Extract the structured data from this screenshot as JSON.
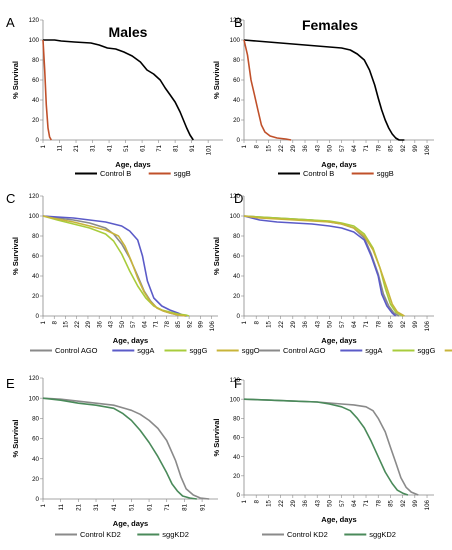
{
  "chart_data": [
    {
      "type": "line",
      "panel": "A",
      "title": "Males",
      "xlabel": "Age, days",
      "ylabel": "% Survival",
      "ylim": [
        0,
        120
      ],
      "yticks": [
        "0",
        "20",
        "40",
        "60",
        "80",
        "100",
        "120"
      ],
      "xticks": [
        "1",
        "11",
        "21",
        "31",
        "41",
        "51",
        "61",
        "71",
        "81",
        "91",
        "101"
      ],
      "xlim": [
        1,
        110
      ],
      "legend": "bottom",
      "series": [
        {
          "name": "Control B",
          "color": "#000000",
          "x": [
            1,
            8,
            12,
            20,
            30,
            35,
            40,
            45,
            50,
            55,
            60,
            64,
            68,
            72,
            75,
            78,
            81,
            84,
            86,
            88,
            90,
            92
          ],
          "y": [
            100,
            100,
            99,
            98,
            97,
            95,
            92,
            91,
            88,
            84,
            78,
            70,
            66,
            60,
            52,
            45,
            38,
            28,
            20,
            12,
            5,
            0
          ]
        },
        {
          "name": "sggB",
          "color": "#c0502a",
          "x": [
            1,
            2,
            3,
            4,
            5,
            6
          ],
          "y": [
            100,
            70,
            35,
            12,
            3,
            0
          ]
        }
      ]
    },
    {
      "type": "line",
      "panel": "B",
      "title": "Females",
      "xlabel": "Age, days",
      "ylabel": "% Survival",
      "ylim": [
        0,
        120
      ],
      "yticks": [
        "0",
        "20",
        "40",
        "60",
        "80",
        "100",
        "120"
      ],
      "xticks": [
        "1",
        "8",
        "15",
        "22",
        "29",
        "36",
        "43",
        "50",
        "57",
        "64",
        "71",
        "78",
        "85",
        "92",
        "99",
        "106"
      ],
      "xlim": [
        1,
        110
      ],
      "legend": "bottom",
      "series": [
        {
          "name": "Control B",
          "color": "#000000",
          "x": [
            1,
            8,
            15,
            22,
            29,
            36,
            43,
            50,
            57,
            62,
            66,
            70,
            73,
            76,
            78,
            80,
            82,
            84,
            86,
            88,
            90,
            93
          ],
          "y": [
            100,
            99,
            98,
            97,
            96,
            95,
            94,
            93,
            92,
            90,
            86,
            80,
            70,
            55,
            42,
            30,
            20,
            12,
            6,
            2,
            0,
            0
          ]
        },
        {
          "name": "sggB",
          "color": "#c0502a",
          "x": [
            1,
            3,
            5,
            7,
            9,
            11,
            13,
            16,
            20,
            25,
            28
          ],
          "y": [
            100,
            85,
            60,
            45,
            30,
            15,
            8,
            4,
            2,
            1,
            0
          ]
        }
      ]
    },
    {
      "type": "line",
      "panel": "C",
      "title": "",
      "xlabel": "Age, days",
      "ylabel": "% Survival",
      "ylim": [
        0,
        120
      ],
      "yticks": [
        "0",
        "20",
        "40",
        "60",
        "80",
        "100",
        "120"
      ],
      "xticks": [
        "1",
        "8",
        "15",
        "22",
        "29",
        "36",
        "43",
        "50",
        "57",
        "64",
        "71",
        "78",
        "85",
        "92",
        "99",
        "106"
      ],
      "xlim": [
        1,
        110
      ],
      "legend": "bottom",
      "series": [
        {
          "name": "Control AGO",
          "color": "#8a8a8a",
          "x": [
            1,
            10,
            20,
            30,
            40,
            45,
            50,
            55,
            60,
            64,
            68,
            72,
            76,
            80,
            85,
            90
          ],
          "y": [
            100,
            98,
            96,
            93,
            88,
            82,
            72,
            58,
            40,
            25,
            15,
            8,
            5,
            3,
            1,
            0
          ]
        },
        {
          "name": "sggA",
          "color": "#5b5bc8",
          "x": [
            1,
            10,
            20,
            30,
            40,
            50,
            55,
            60,
            63,
            66,
            70,
            75,
            80,
            85,
            88,
            91
          ],
          "y": [
            100,
            99,
            98,
            96,
            94,
            90,
            85,
            76,
            60,
            35,
            18,
            10,
            6,
            3,
            1,
            0
          ]
        },
        {
          "name": "sggG",
          "color": "#a8cc3c",
          "x": [
            1,
            10,
            20,
            30,
            40,
            45,
            50,
            55,
            60,
            65,
            70,
            75,
            80,
            85,
            90,
            92
          ],
          "y": [
            100,
            96,
            92,
            88,
            82,
            75,
            62,
            45,
            30,
            18,
            10,
            6,
            4,
            2,
            1,
            0
          ]
        },
        {
          "name": "sggO",
          "color": "#c8b43a",
          "x": [
            1,
            10,
            20,
            30,
            40,
            48,
            52,
            56,
            60,
            64,
            68,
            72,
            76,
            80,
            85,
            90
          ],
          "y": [
            100,
            97,
            94,
            90,
            86,
            80,
            70,
            55,
            38,
            24,
            14,
            8,
            5,
            3,
            1,
            0
          ]
        }
      ]
    },
    {
      "type": "line",
      "panel": "D",
      "title": "",
      "xlabel": "Age, days",
      "ylabel": "% Survival",
      "ylim": [
        0,
        120
      ],
      "yticks": [
        "0",
        "20",
        "40",
        "60",
        "80",
        "100",
        "120"
      ],
      "xticks": [
        "1",
        "8",
        "15",
        "22",
        "29",
        "36",
        "43",
        "50",
        "57",
        "64",
        "71",
        "78",
        "85",
        "92",
        "99",
        "106"
      ],
      "xlim": [
        1,
        110
      ],
      "legend": "bottom",
      "series": [
        {
          "name": "Control AGO",
          "color": "#8a8a8a",
          "x": [
            1,
            10,
            20,
            30,
            40,
            50,
            57,
            64,
            70,
            74,
            78,
            81,
            84,
            87,
            90
          ],
          "y": [
            100,
            99,
            98,
            97,
            96,
            94,
            92,
            88,
            78,
            62,
            42,
            22,
            10,
            3,
            0
          ]
        },
        {
          "name": "sggA",
          "color": "#5b5bc8",
          "x": [
            1,
            10,
            20,
            30,
            40,
            50,
            57,
            64,
            70,
            74,
            78,
            80,
            83,
            86,
            88
          ],
          "y": [
            100,
            96,
            94,
            93,
            92,
            90,
            88,
            84,
            76,
            60,
            40,
            22,
            10,
            3,
            0
          ]
        },
        {
          "name": "sggG",
          "color": "#a8cc3c",
          "x": [
            1,
            10,
            20,
            30,
            40,
            50,
            57,
            64,
            70,
            75,
            79,
            82,
            85,
            88,
            92
          ],
          "y": [
            100,
            99,
            98,
            97,
            96,
            95,
            93,
            90,
            82,
            68,
            48,
            28,
            12,
            4,
            0
          ]
        },
        {
          "name": "sggO",
          "color": "#c8b43a",
          "x": [
            1,
            10,
            20,
            30,
            40,
            50,
            57,
            64,
            70,
            75,
            79,
            83,
            86,
            89,
            93
          ],
          "y": [
            100,
            98,
            97,
            96,
            95,
            94,
            92,
            88,
            80,
            66,
            48,
            28,
            12,
            4,
            0
          ]
        }
      ]
    },
    {
      "type": "line",
      "panel": "E",
      "title": "",
      "xlabel": "Age, days",
      "ylabel": "% Survival",
      "ylim": [
        0,
        120
      ],
      "yticks": [
        "0",
        "20",
        "40",
        "60",
        "80",
        "100",
        "120"
      ],
      "xticks": [
        "1",
        "11",
        "21",
        "31",
        "41",
        "51",
        "61",
        "71",
        "81",
        "91"
      ],
      "xlim": [
        1,
        100
      ],
      "legend": "bottom",
      "series": [
        {
          "name": "Control KD2",
          "color": "#8a8a8a",
          "x": [
            1,
            11,
            21,
            31,
            41,
            51,
            56,
            61,
            66,
            71,
            76,
            79,
            82,
            86,
            90,
            95
          ],
          "y": [
            100,
            99,
            97,
            95,
            93,
            88,
            84,
            78,
            70,
            58,
            38,
            22,
            10,
            4,
            1,
            0
          ]
        },
        {
          "name": "sggKD2",
          "color": "#4a8a5a",
          "x": [
            1,
            11,
            21,
            31,
            41,
            46,
            51,
            56,
            61,
            66,
            71,
            74,
            77,
            80,
            84,
            88
          ],
          "y": [
            100,
            98,
            95,
            93,
            90,
            85,
            78,
            68,
            56,
            42,
            26,
            15,
            8,
            3,
            1,
            0
          ]
        }
      ]
    },
    {
      "type": "line",
      "panel": "F",
      "title": "",
      "xlabel": "Age, days",
      "ylabel": "% Survival",
      "ylim": [
        0,
        120
      ],
      "yticks": [
        "0",
        "20",
        "40",
        "60",
        "80",
        "100",
        "120"
      ],
      "xticks": [
        "1",
        "8",
        "15",
        "22",
        "29",
        "36",
        "43",
        "50",
        "57",
        "64",
        "71",
        "78",
        "85",
        "92",
        "99",
        "106"
      ],
      "xlim": [
        1,
        110
      ],
      "legend": "bottom",
      "series": [
        {
          "name": "Control KD2",
          "color": "#8a8a8a",
          "x": [
            1,
            15,
            29,
            43,
            57,
            64,
            71,
            75,
            78,
            82,
            85,
            88,
            91,
            94,
            97,
            101
          ],
          "y": [
            100,
            99,
            98,
            97,
            95,
            94,
            92,
            88,
            80,
            66,
            50,
            34,
            18,
            8,
            3,
            0
          ]
        },
        {
          "name": "sggKD2",
          "color": "#4a8a5a",
          "x": [
            1,
            15,
            29,
            43,
            50,
            57,
            62,
            66,
            70,
            74,
            78,
            82,
            86,
            89,
            92,
            95
          ],
          "y": [
            100,
            99,
            98,
            97,
            95,
            92,
            88,
            80,
            70,
            56,
            40,
            24,
            12,
            5,
            2,
            0
          ]
        }
      ]
    }
  ]
}
